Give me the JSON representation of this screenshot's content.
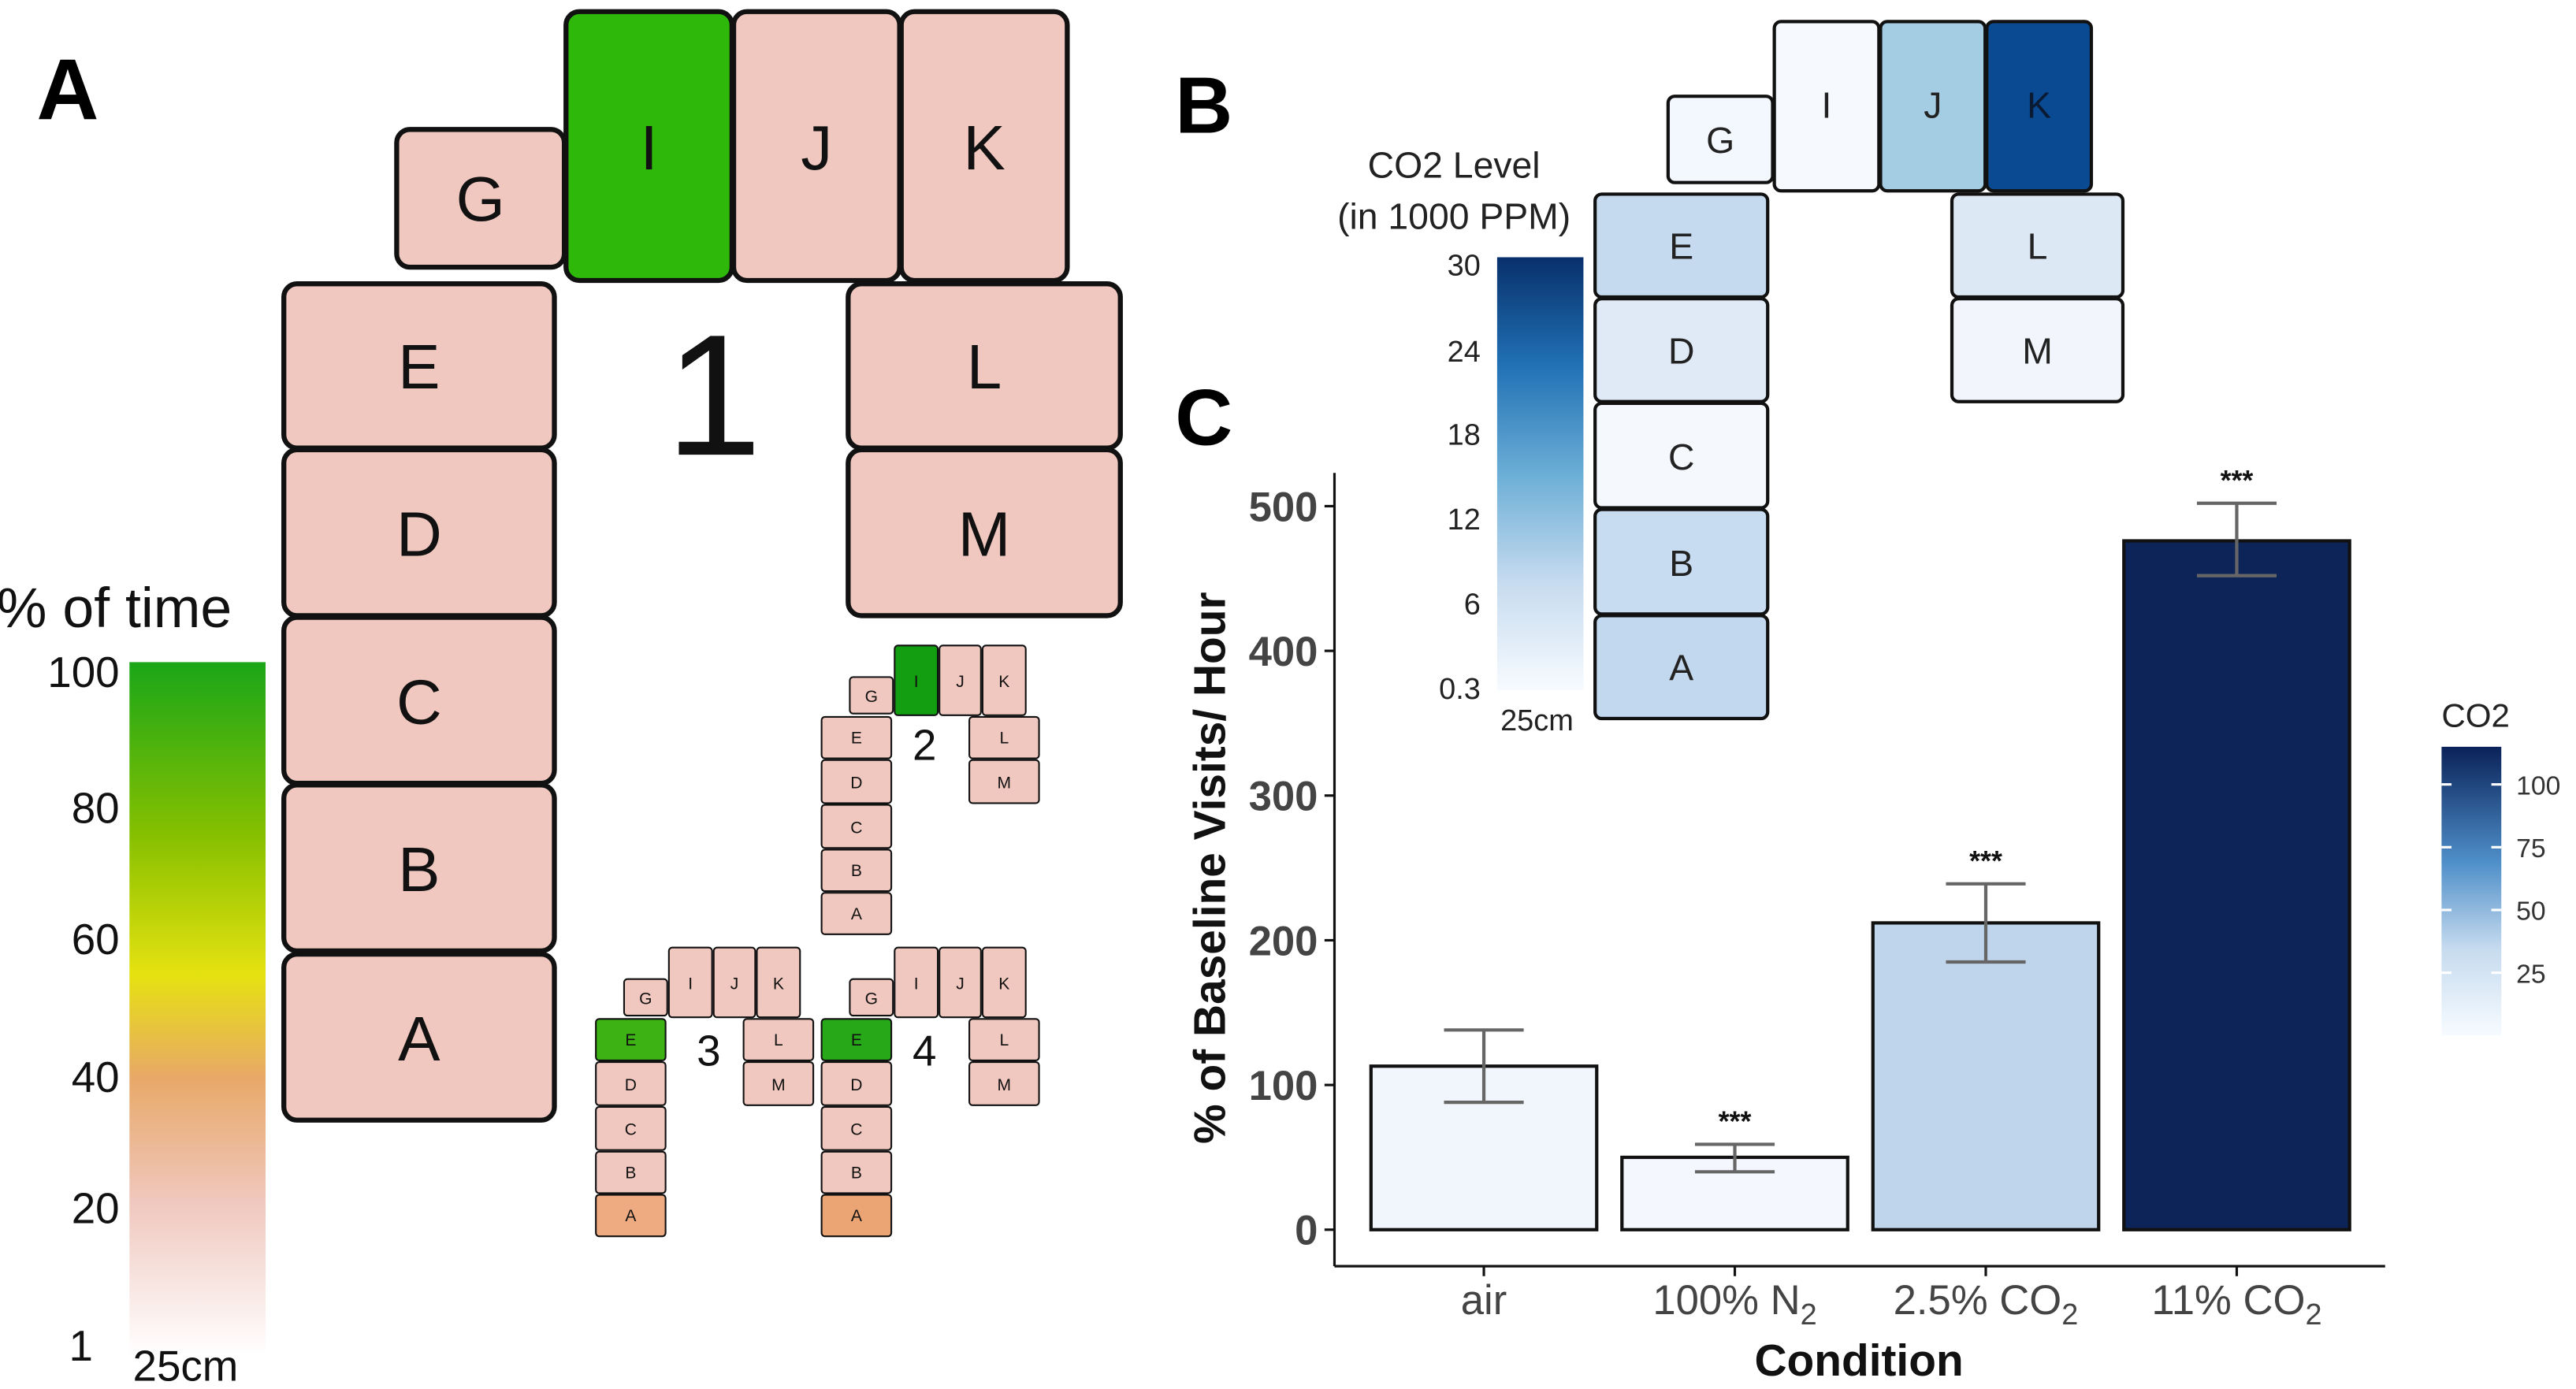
{
  "colors": {
    "tile_fill_default": "#f0c8bf",
    "tile_stroke": "#111111",
    "time_gradient": [
      "#ffffff",
      "#f0c8bf",
      "#e8a868",
      "#e6e210",
      "#86c000",
      "#1aa618"
    ],
    "tile_I_primary": "#2db80a",
    "tile_I_small2": "#139d10",
    "tile_E_small3": "#3cb214",
    "tile_E_small4": "#26a818",
    "tile_A_small3": "#eeaa80",
    "tile_A_small4": "#eba474",
    "bar_air": "#f1f6fd",
    "bar_n2": "#f4f8fe",
    "bar_co2_25": "#bfd5ec",
    "bar_co2_11": "#0c2458",
    "error_bar": "#666666",
    "co2_gradient": [
      "#f7fbff",
      "#c6dbef",
      "#6baed6",
      "#2171b5",
      "#08306b"
    ],
    "co2_tiles": {
      "G": "#f3f7fe",
      "I": "#f6f9fe",
      "J": "#a4cde4",
      "K": "#0a4a93",
      "L": "#dde8f5",
      "M": "#f2f6fc",
      "E": "#c6daef",
      "D": "#dfeaf6",
      "C": "#f5f9fe",
      "B": "#c7dcf0",
      "A": "#c2d8ee"
    }
  },
  "panel_a": {
    "label": "A",
    "legend": {
      "title": "% of time",
      "ticks": [
        "100",
        "80",
        "60",
        "40",
        "20",
        "1"
      ],
      "scale_label": "25cm"
    },
    "maze_1": {
      "number": "1",
      "tiles": [
        "A",
        "B",
        "C",
        "D",
        "E",
        "G",
        "I",
        "J",
        "K",
        "L",
        "M"
      ],
      "highlight": "I"
    },
    "maze_2": {
      "number": "2",
      "tiles": [
        "A",
        "B",
        "C",
        "D",
        "E",
        "G",
        "I",
        "J",
        "K",
        "L",
        "M"
      ],
      "highlight": "I"
    },
    "maze_3": {
      "number": "3",
      "tiles": [
        "A",
        "B",
        "C",
        "D",
        "E",
        "G",
        "I",
        "J",
        "K",
        "L",
        "M"
      ],
      "highlight": "E"
    },
    "maze_4": {
      "number": "4",
      "tiles": [
        "A",
        "B",
        "C",
        "D",
        "E",
        "G",
        "I",
        "J",
        "K",
        "L",
        "M"
      ],
      "highlight": "E"
    }
  },
  "panel_b": {
    "label": "B",
    "legend": {
      "title_line1": "CO2 Level",
      "title_line2": "(in 1000 PPM)",
      "ticks": [
        "30",
        "24",
        "18",
        "12",
        "6",
        "0.3"
      ],
      "scale_label": "25cm"
    },
    "tiles": [
      "A",
      "B",
      "C",
      "D",
      "E",
      "G",
      "I",
      "J",
      "K",
      "L",
      "M"
    ]
  },
  "chart_data": {
    "type": "bar",
    "panel_label": "C",
    "categories": [
      "air",
      "100% N2",
      "2.5% CO2",
      "11% CO2"
    ],
    "category_labels": [
      {
        "main": "air",
        "sub": "",
        "tail": ""
      },
      {
        "main": "100% N",
        "sub": "2",
        "tail": ""
      },
      {
        "main": "2.5% CO",
        "sub": "2",
        "tail": ""
      },
      {
        "main": "11% CO",
        "sub": "2",
        "tail": ""
      }
    ],
    "values": [
      113,
      50,
      212,
      476
    ],
    "error_low": [
      88,
      40,
      185,
      452
    ],
    "error_high": [
      138,
      59,
      239,
      502
    ],
    "significance": [
      "",
      "***",
      "***",
      "***"
    ],
    "co2_values": [
      0,
      0,
      25,
      110
    ],
    "xlabel": "Condition",
    "ylabel": "% of Baseline Visits/ Hour",
    "ylim": [
      0,
      525
    ],
    "yticks": [
      0,
      100,
      200,
      300,
      400,
      500
    ],
    "legend": {
      "title": "CO2",
      "ticks": [
        25,
        50,
        75,
        100
      ],
      "range": [
        0,
        115
      ],
      "placement": "right"
    },
    "grid": false
  }
}
